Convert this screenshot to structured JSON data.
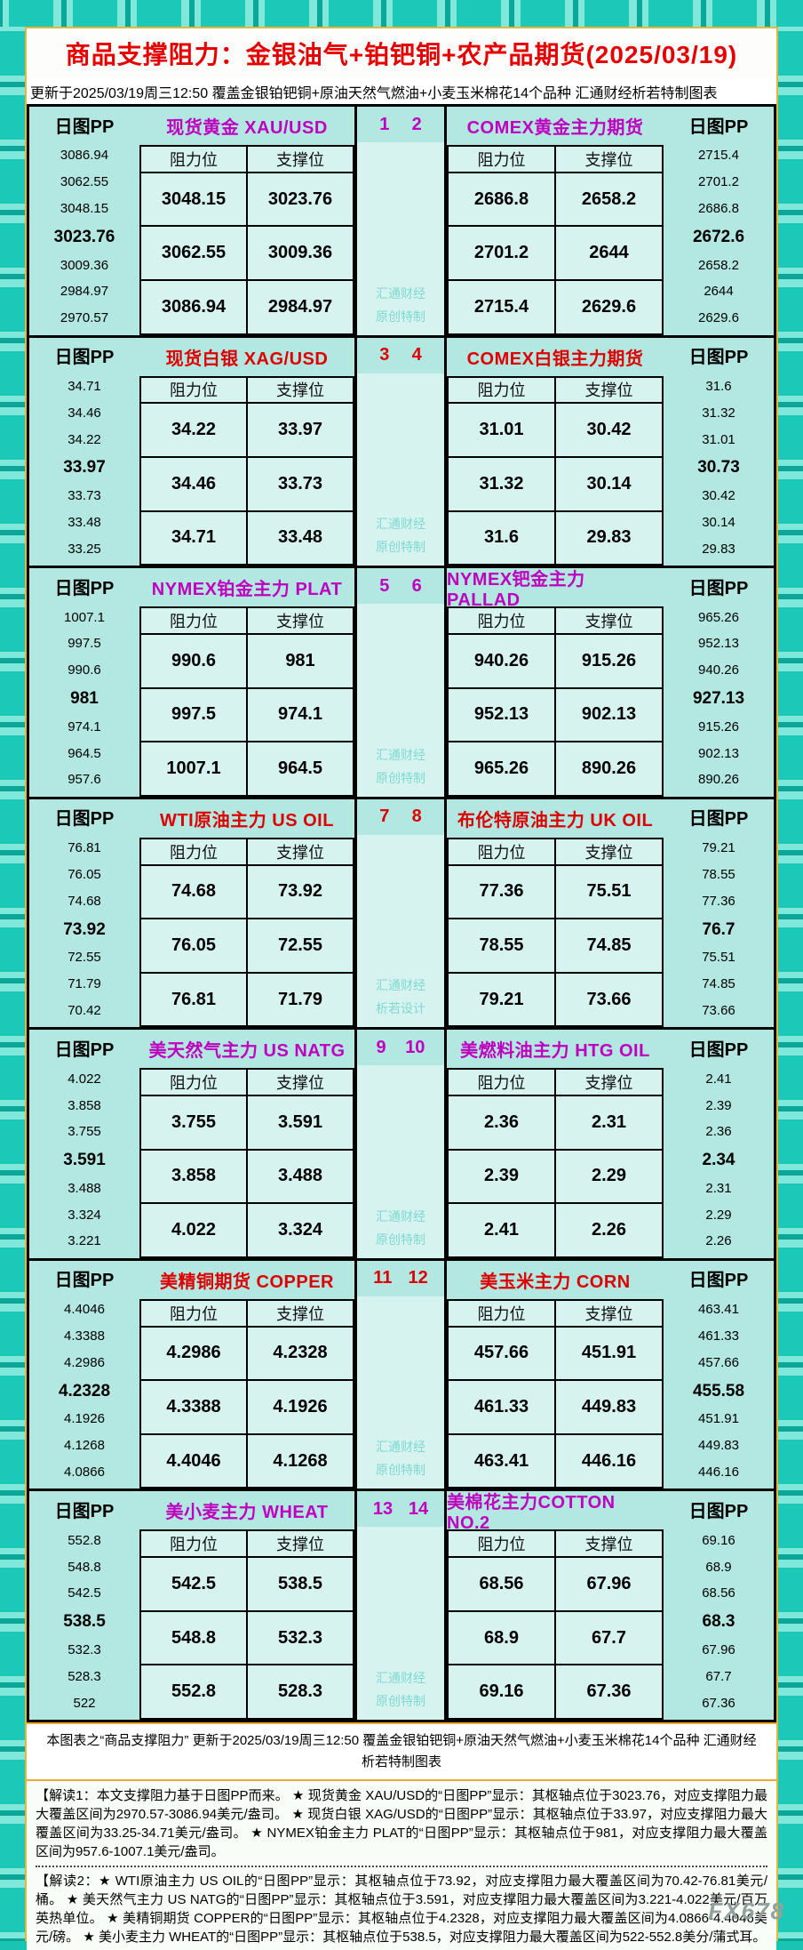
{
  "header": {
    "title": "商品支撑阻力：金银油气+铂钯铜+农产品期货(2025/03/19)",
    "subtitle": "更新于2025/03/19周三12:50  覆盖金银铂钯铜+原油天然气燃油+小麦玉米棉花14个品种  汇通财经析若特制图表"
  },
  "labels": {
    "pp_header": "日图PP",
    "resistance": "阻力位",
    "support": "支撑位"
  },
  "colors": {
    "magenta": "#bf00bf",
    "red": "#dd0000",
    "watermark_teal": "#7fd9d0",
    "frame_teal": "#1cc9b8",
    "cell_bg": "#d6f3f0",
    "panel_bg": "#b2e8e1"
  },
  "chart_data": {
    "type": "table",
    "title": "商品支撑阻力：金银油气+铂钯铜+农产品期货(2025/03/19)",
    "columns_per_instrument": [
      "阻力位",
      "支撑位"
    ],
    "blocks": [
      {
        "index_left": "1",
        "index_right": "2",
        "accent": "magenta",
        "left_title": "现货黄金 XAU/USD",
        "left_pp": [
          "3086.94",
          "3062.55",
          "3048.15",
          "3023.76",
          "3009.36",
          "2984.97",
          "2970.57"
        ],
        "left_rows": [
          [
            "3048.15",
            "3023.76"
          ],
          [
            "3062.55",
            "3009.36"
          ],
          [
            "3086.94",
            "2984.97"
          ]
        ],
        "watermark": [
          "汇通财经",
          "原创特制"
        ],
        "right_title": "COMEX黄金主力期货",
        "right_rows": [
          [
            "2686.8",
            "2658.2"
          ],
          [
            "2701.2",
            "2644"
          ],
          [
            "2715.4",
            "2629.6"
          ]
        ],
        "right_pp": [
          "2715.4",
          "2701.2",
          "2686.8",
          "2672.6",
          "2658.2",
          "2644",
          "2629.6"
        ]
      },
      {
        "index_left": "3",
        "index_right": "4",
        "accent": "red",
        "left_title": "现货白银 XAG/USD",
        "left_pp": [
          "34.71",
          "34.46",
          "34.22",
          "33.97",
          "33.73",
          "33.48",
          "33.25"
        ],
        "left_rows": [
          [
            "34.22",
            "33.97"
          ],
          [
            "34.46",
            "33.73"
          ],
          [
            "34.71",
            "33.48"
          ]
        ],
        "watermark": [
          "汇通财经",
          "原创特制"
        ],
        "right_title": "COMEX白银主力期货",
        "right_rows": [
          [
            "31.01",
            "30.42"
          ],
          [
            "31.32",
            "30.14"
          ],
          [
            "31.6",
            "29.83"
          ]
        ],
        "right_pp": [
          "31.6",
          "31.32",
          "31.01",
          "30.73",
          "30.42",
          "30.14",
          "29.83"
        ]
      },
      {
        "index_left": "5",
        "index_right": "6",
        "accent": "magenta",
        "left_title": "NYMEX铂金主力 PLAT",
        "left_pp": [
          "1007.1",
          "997.5",
          "990.6",
          "981",
          "974.1",
          "964.5",
          "957.6"
        ],
        "left_rows": [
          [
            "990.6",
            "981"
          ],
          [
            "997.5",
            "974.1"
          ],
          [
            "1007.1",
            "964.5"
          ]
        ],
        "watermark": [
          "汇通财经",
          "原创特制"
        ],
        "right_title": "NYMEX钯金主力 PALLAD",
        "right_rows": [
          [
            "940.26",
            "915.26"
          ],
          [
            "952.13",
            "902.13"
          ],
          [
            "965.26",
            "890.26"
          ]
        ],
        "right_pp": [
          "965.26",
          "952.13",
          "940.26",
          "927.13",
          "915.26",
          "902.13",
          "890.26"
        ]
      },
      {
        "index_left": "7",
        "index_right": "8",
        "accent": "red",
        "left_title": "WTI原油主力 US OIL",
        "left_pp": [
          "76.81",
          "76.05",
          "74.68",
          "73.92",
          "72.55",
          "71.79",
          "70.42"
        ],
        "left_rows": [
          [
            "74.68",
            "73.92"
          ],
          [
            "76.05",
            "72.55"
          ],
          [
            "76.81",
            "71.79"
          ]
        ],
        "watermark": [
          "汇通财经",
          "析若设计"
        ],
        "right_title": "布伦特原油主力 UK OIL",
        "right_rows": [
          [
            "77.36",
            "75.51"
          ],
          [
            "78.55",
            "74.85"
          ],
          [
            "79.21",
            "73.66"
          ]
        ],
        "right_pp": [
          "79.21",
          "78.55",
          "77.36",
          "76.7",
          "75.51",
          "74.85",
          "73.66"
        ]
      },
      {
        "index_left": "9",
        "index_right": "10",
        "accent": "magenta",
        "left_title": "美天然气主力 US NATG",
        "left_pp": [
          "4.022",
          "3.858",
          "3.755",
          "3.591",
          "3.488",
          "3.324",
          "3.221"
        ],
        "left_rows": [
          [
            "3.755",
            "3.591"
          ],
          [
            "3.858",
            "3.488"
          ],
          [
            "4.022",
            "3.324"
          ]
        ],
        "watermark": [
          "汇通财经",
          "原创特制"
        ],
        "right_title": "美燃料油主力 HTG OIL",
        "right_rows": [
          [
            "2.36",
            "2.31"
          ],
          [
            "2.39",
            "2.29"
          ],
          [
            "2.41",
            "2.26"
          ]
        ],
        "right_pp": [
          "2.41",
          "2.39",
          "2.36",
          "2.34",
          "2.31",
          "2.29",
          "2.26"
        ]
      },
      {
        "index_left": "11",
        "index_right": "12",
        "accent": "red",
        "left_title": "美精铜期货 COPPER",
        "left_pp": [
          "4.4046",
          "4.3388",
          "4.2986",
          "4.2328",
          "4.1926",
          "4.1268",
          "4.0866"
        ],
        "left_rows": [
          [
            "4.2986",
            "4.2328"
          ],
          [
            "4.3388",
            "4.1926"
          ],
          [
            "4.4046",
            "4.1268"
          ]
        ],
        "watermark": [
          "汇通财经",
          "原创特制"
        ],
        "right_title": "美玉米主力 CORN",
        "right_rows": [
          [
            "457.66",
            "451.91"
          ],
          [
            "461.33",
            "449.83"
          ],
          [
            "463.41",
            "446.16"
          ]
        ],
        "right_pp": [
          "463.41",
          "461.33",
          "457.66",
          "455.58",
          "451.91",
          "449.83",
          "446.16"
        ]
      },
      {
        "index_left": "13",
        "index_right": "14",
        "accent": "magenta",
        "left_title": "美小麦主力 WHEAT",
        "left_pp": [
          "552.8",
          "548.8",
          "542.5",
          "538.5",
          "532.3",
          "528.3",
          "522"
        ],
        "left_rows": [
          [
            "542.5",
            "538.5"
          ],
          [
            "548.8",
            "532.3"
          ],
          [
            "552.8",
            "528.3"
          ]
        ],
        "watermark": [
          "汇通财经",
          "原创特制"
        ],
        "right_title": "美棉花主力COTTON NO.2",
        "right_rows": [
          [
            "68.56",
            "67.96"
          ],
          [
            "68.9",
            "67.7"
          ],
          [
            "69.16",
            "67.36"
          ]
        ],
        "right_pp": [
          "69.16",
          "68.9",
          "68.56",
          "68.3",
          "67.96",
          "67.7",
          "67.36"
        ]
      }
    ]
  },
  "summary": {
    "line1": "本图表之“商品支撑阻力” 更新于2025/03/19周三12:50 覆盖金银铂钯铜+原油天然气燃油+小麦玉米棉花14个品种 汇通财经",
    "line2": "析若特制图表"
  },
  "notes": {
    "note1": "【解读1：本文支撑阻力基于日图PP而来。 ★ 现货黄金 XAU/USD的“日图PP”显示：其枢轴点位于3023.76，对应支撑阻力最大覆盖区间为2970.57-3086.94美元/盎司。 ★ 现货白银 XAG/USD的“日图PP”显示：其枢轴点位于33.97，对应支撑阻力最大覆盖区间为33.25-34.71美元/盎司。 ★ NYMEX铂金主力 PLAT的“日图PP”显示：其枢轴点位于981，对应支撑阻力最大覆盖区间为957.6-1007.1美元/盎司。",
    "note2": "【解读2：★ WTI原油主力 US OIL的“日图PP”显示：其枢轴点位于73.92，对应支撑阻力最大覆盖区间为70.42-76.81美元/桶。 ★ 美天然气主力 US NATG的“日图PP”显示：其枢轴点位于3.591，对应支撑阻力最大覆盖区间为3.221-4.022美元/百万英热单位。 ★ 美精铜期货 COPPER的“日图PP”显示：其枢轴点位于4.2328，对应支撑阻力最大覆盖区间为4.0866-4.4046美元/磅。 ★ 美小麦主力 WHEAT的“日图PP”显示：其枢轴点位于538.5，对应支撑阻力最大覆盖区间为522-552.8美分/蒲式耳。"
  },
  "site_watermark": "FX678"
}
